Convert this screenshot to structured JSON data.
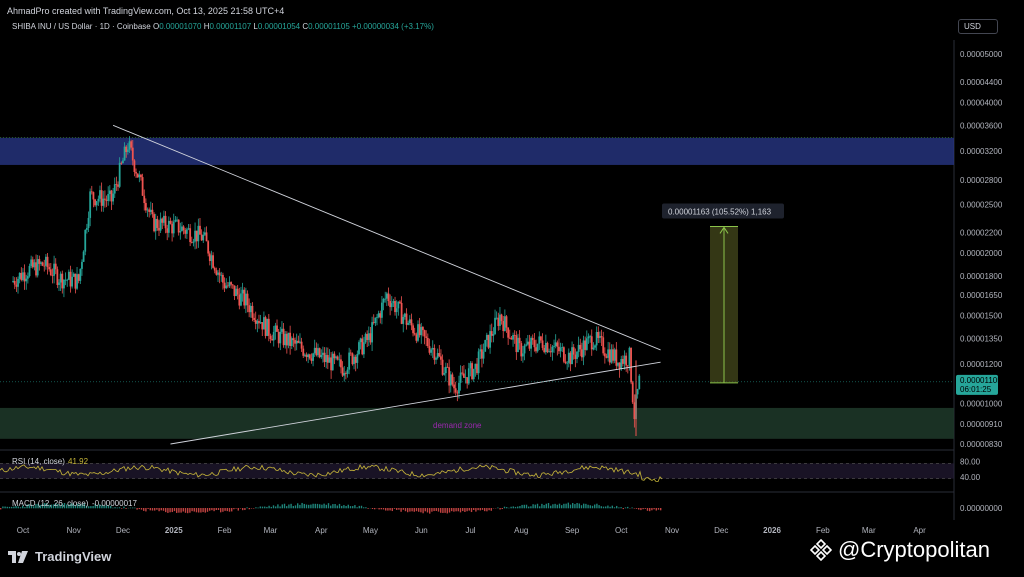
{
  "header": {
    "title": "AhmadPro created with TradingView.com, Oct 13, 2025 21:58 UTC+4",
    "symbol": "SHIBA INU / US Dollar · 1D · Coinbase",
    "o_label": "O",
    "o_value": "0.00001070",
    "h_label": "H",
    "h_value": "0.00001107",
    "l_label": "L",
    "l_value": "0.00001054",
    "c_label": "C",
    "c_value": "0.00001105",
    "change": "+0.00000034 (+3.17%)"
  },
  "currency_button": "USD",
  "colors": {
    "up": "#26a69a",
    "down": "#ef5350",
    "background": "#000000",
    "supply_zone": "#2a3a8c",
    "demand_zone": "#1f3a2a",
    "rsi_line": "#c9b83a",
    "measure_fill": "#4a4f1e",
    "measure_line": "#8bc34a",
    "trendline": "#d1d4dc"
  },
  "annotations": {
    "demand_zone_label": "demand zone",
    "measure_label": "0.00001163 (105.52%) 1,163"
  },
  "chart_data": {
    "type": "candlestick",
    "title": "SHIBA INU / US Dollar · 1D · Coinbase",
    "scale": "log",
    "y_ticks": [
      "0.00005000",
      "0.00004400",
      "0.00004000",
      "0.00003600",
      "0.00003200",
      "0.00002800",
      "0.00002500",
      "0.00002200",
      "0.00002000",
      "0.00001800",
      "0.00001650",
      "0.00001500",
      "0.00001350",
      "0.00001200",
      "0.00001000",
      "0.00000910",
      "0.00000830"
    ],
    "x_ticks": [
      "Oct",
      "Nov",
      "Dec",
      "2025",
      "Feb",
      "Mar",
      "Apr",
      "May",
      "Jun",
      "Jul",
      "Aug",
      "Sep",
      "Oct",
      "Nov",
      "Dec",
      "2026",
      "Feb",
      "Mar",
      "Apr"
    ],
    "price_points": [
      {
        "date": "2024-09-25",
        "close": 1.75e-05
      },
      {
        "date": "2024-10-05",
        "close": 1.85e-05
      },
      {
        "date": "2024-10-15",
        "close": 1.9e-05
      },
      {
        "date": "2024-10-25",
        "close": 1.78e-05
      },
      {
        "date": "2024-11-05",
        "close": 1.76e-05
      },
      {
        "date": "2024-11-12",
        "close": 2.6e-05
      },
      {
        "date": "2024-11-25",
        "close": 2.55e-05
      },
      {
        "date": "2024-12-05",
        "close": 3.3e-05
      },
      {
        "date": "2024-12-10",
        "close": 2.95e-05
      },
      {
        "date": "2024-12-20",
        "close": 2.3e-05
      },
      {
        "date": "2025-01-05",
        "close": 2.25e-05
      },
      {
        "date": "2025-01-20",
        "close": 2.15e-05
      },
      {
        "date": "2025-02-01",
        "close": 1.75e-05
      },
      {
        "date": "2025-02-15",
        "close": 1.6e-05
      },
      {
        "date": "2025-03-01",
        "close": 1.4e-05
      },
      {
        "date": "2025-03-15",
        "close": 1.32e-05
      },
      {
        "date": "2025-04-01",
        "close": 1.24e-05
      },
      {
        "date": "2025-04-15",
        "close": 1.18e-05
      },
      {
        "date": "2025-05-01",
        "close": 1.35e-05
      },
      {
        "date": "2025-05-12",
        "close": 1.65e-05
      },
      {
        "date": "2025-05-25",
        "close": 1.45e-05
      },
      {
        "date": "2025-06-10",
        "close": 1.28e-05
      },
      {
        "date": "2025-06-22",
        "close": 1.08e-05
      },
      {
        "date": "2025-07-05",
        "close": 1.18e-05
      },
      {
        "date": "2025-07-20",
        "close": 1.5e-05
      },
      {
        "date": "2025-08-01",
        "close": 1.28e-05
      },
      {
        "date": "2025-08-15",
        "close": 1.33e-05
      },
      {
        "date": "2025-09-01",
        "close": 1.24e-05
      },
      {
        "date": "2025-09-15",
        "close": 1.35e-05
      },
      {
        "date": "2025-09-30",
        "close": 1.22e-05
      },
      {
        "date": "2025-10-07",
        "close": 1.24e-05
      },
      {
        "date": "2025-10-10",
        "close": 9.5e-06
      },
      {
        "date": "2025-10-13",
        "close": 1.105e-05
      }
    ],
    "last_price": {
      "value": "0.00001105",
      "countdown": "06:01:25"
    },
    "supply_zone": {
      "from": 3e-05,
      "to": 3.4e-05
    },
    "demand_zone": {
      "from": 8.5e-06,
      "to": 9.8e-06,
      "label": "demand zone"
    },
    "trendlines": [
      {
        "name": "descending",
        "from": {
          "date": "2024-11-25",
          "price": 3.6e-05
        },
        "to": {
          "date": "2025-10-25",
          "price": 1.28e-05
        }
      },
      {
        "name": "ascending",
        "from": {
          "date": "2024-12-30",
          "price": 8.3e-06
        },
        "to": {
          "date": "2025-10-25",
          "price": 1.21e-05
        }
      }
    ],
    "measure": {
      "from": 1.1e-05,
      "to": 2.26e-05,
      "label": "0.00001163 (105.52%) 1,163"
    },
    "rsi": {
      "label": "RSI (14, close)",
      "value": "41.92",
      "levels": [
        "80.00",
        "40.00"
      ]
    },
    "macd": {
      "label": "MACD (12, 26, close)",
      "value": "-0.00000017",
      "axis": "0.00000000"
    }
  },
  "watermarks": {
    "tradingview": "TradingView",
    "publisher": "@Cryptopolitan"
  }
}
